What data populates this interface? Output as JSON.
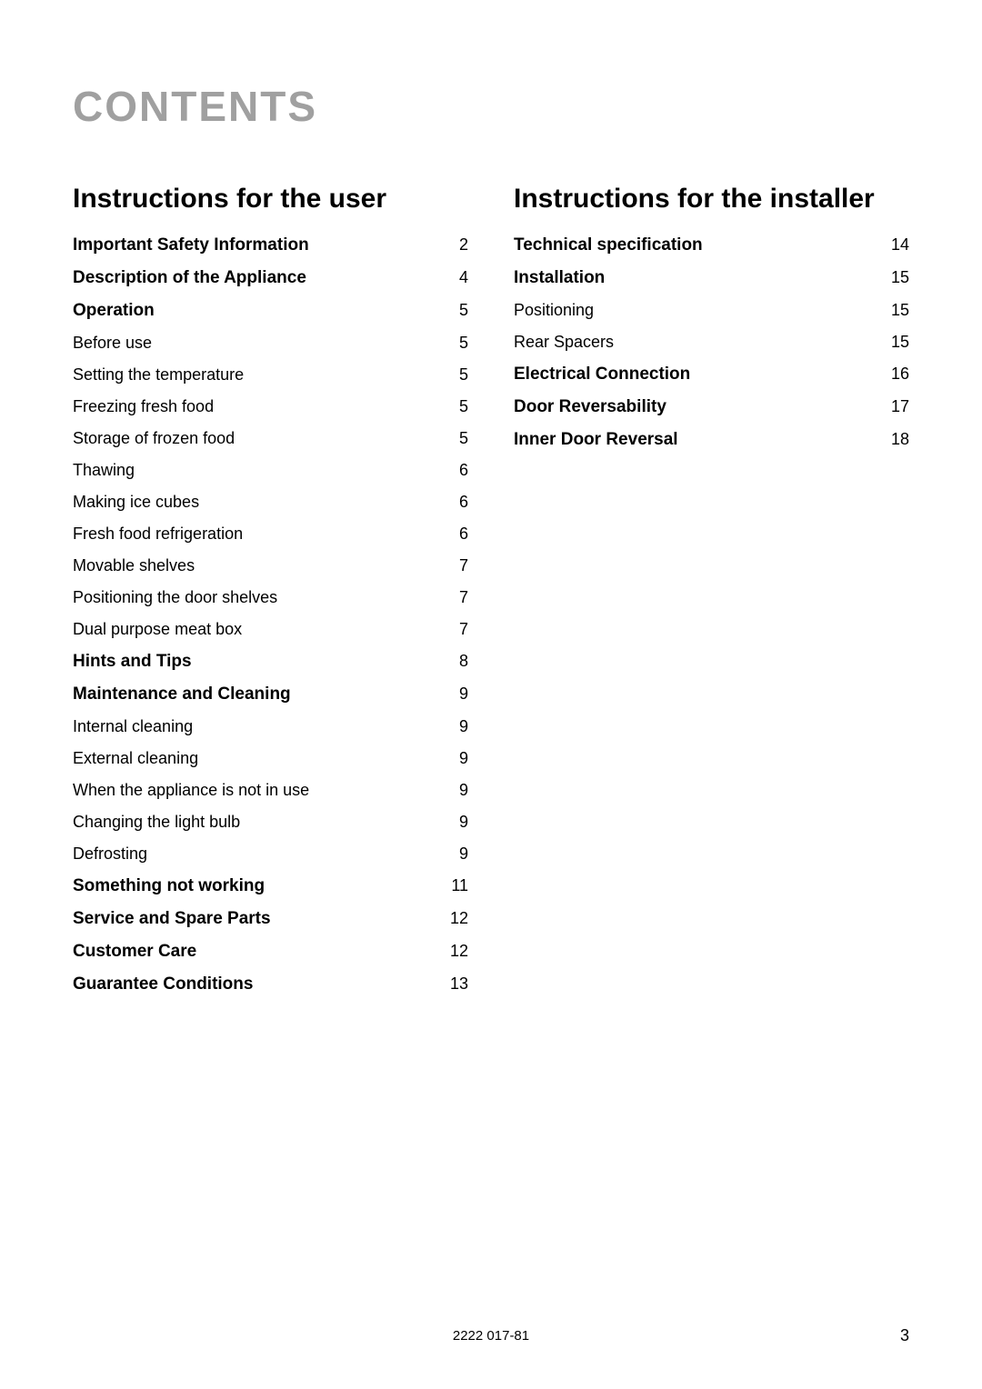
{
  "page": {
    "title": "CONTENTS",
    "footer_code": "2222 017-81",
    "page_number": "3",
    "background_color": "#ffffff",
    "title_color": "#a0a0a0",
    "text_color": "#000000",
    "main_title_fontsize": 46,
    "section_title_fontsize": 30,
    "entry_fontsize": 18,
    "bold_entry_fontsize": 19
  },
  "left_column": {
    "heading": "Instructions for the user",
    "entries": [
      {
        "label": "Important Safety Information",
        "page": "2",
        "bold": true
      },
      {
        "label": "Description of the Appliance",
        "page": "4",
        "bold": true
      },
      {
        "label": "Operation",
        "page": "5",
        "bold": true
      },
      {
        "label": "Before use",
        "page": "5",
        "bold": false
      },
      {
        "label": "Setting the temperature",
        "page": "5",
        "bold": false
      },
      {
        "label": "Freezing fresh food",
        "page": "5",
        "bold": false
      },
      {
        "label": "Storage of frozen food",
        "page": "5",
        "bold": false
      },
      {
        "label": "Thawing",
        "page": "6",
        "bold": false
      },
      {
        "label": "Making ice cubes",
        "page": "6",
        "bold": false
      },
      {
        "label": "Fresh food refrigeration",
        "page": "6",
        "bold": false
      },
      {
        "label": "Movable shelves",
        "page": "7",
        "bold": false
      },
      {
        "label": "Positioning the door shelves",
        "page": "7",
        "bold": false
      },
      {
        "label": "Dual purpose meat box",
        "page": "7",
        "bold": false
      },
      {
        "label": "Hints and Tips",
        "page": "8",
        "bold": true
      },
      {
        "label": "Maintenance and Cleaning",
        "page": "9",
        "bold": true
      },
      {
        "label": "Internal cleaning",
        "page": "9",
        "bold": false
      },
      {
        "label": "External cleaning",
        "page": "9",
        "bold": false
      },
      {
        "label": "When the appliance is not in use",
        "page": "9",
        "bold": false
      },
      {
        "label": "Changing the light bulb",
        "page": "9",
        "bold": false
      },
      {
        "label": "Defrosting",
        "page": "9",
        "bold": false
      },
      {
        "label": "Something not working",
        "page": "11",
        "bold": true
      },
      {
        "label": "Service and Spare Parts",
        "page": "12",
        "bold": true
      },
      {
        "label": "Customer Care",
        "page": "12",
        "bold": true
      },
      {
        "label": "Guarantee Conditions",
        "page": "13",
        "bold": true
      }
    ]
  },
  "right_column": {
    "heading": "Instructions for the installer",
    "entries": [
      {
        "label": "Technical specification",
        "page": "14",
        "bold": true
      },
      {
        "label": "Installation",
        "page": "15",
        "bold": true
      },
      {
        "label": "Positioning",
        "page": "15",
        "bold": false
      },
      {
        "label": "Rear Spacers",
        "page": "15",
        "bold": false
      },
      {
        "label": "Electrical Connection",
        "page": "16",
        "bold": true
      },
      {
        "label": "Door Reversability",
        "page": "17",
        "bold": true
      },
      {
        "label": "Inner Door Reversal",
        "page": "18",
        "bold": true
      }
    ]
  }
}
